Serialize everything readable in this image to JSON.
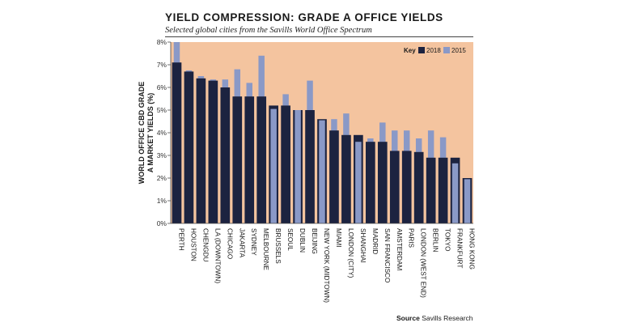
{
  "title": "YIELD COMPRESSION: GRADE A OFFICE YIELDS",
  "subtitle": "Selected global cities from the Savills World Office Spectrum",
  "source_label": "Source",
  "source_text": "Savills Research",
  "colors": {
    "background": "#f4c49f",
    "series_2018": "#1c2340",
    "series_2015": "#8a99c7"
  },
  "chart_data": {
    "type": "bar",
    "ylabel": "WORLD OFFICE CBD GRADE A MARKET YIELDS (%)",
    "legend_title": "Key",
    "legend_position": "top-right",
    "ylim": [
      0,
      8
    ],
    "yticks": [
      "0%",
      "1%",
      "2%",
      "3%",
      "4%",
      "5%",
      "6%",
      "7%",
      "8%"
    ],
    "categories": [
      "PERTH",
      "HOUSTON",
      "CHENGDU",
      "LA (DOWNTOWN)",
      "CHICAGO",
      "JAKARTA",
      "SYDNEY",
      "MELBOURNE",
      "BRUSSELS",
      "SEOUL",
      "DUBLIN",
      "BEIJING",
      "NEW YORK (MIDTOWN)",
      "MIAMI",
      "LONDON (CITY)",
      "SHANGHAI",
      "MADRID",
      "SAN FRANCISCO",
      "AMSTERDAM",
      "PARIS",
      "LONDON (WEST END)",
      "BERLIN",
      "TOKYO",
      "FRANKFURT",
      "HONG KONG"
    ],
    "series": [
      {
        "name": "2018",
        "values": [
          7.1,
          6.7,
          6.4,
          6.3,
          6.0,
          5.6,
          5.6,
          5.6,
          5.2,
          5.2,
          5.0,
          5.0,
          4.6,
          4.1,
          3.9,
          3.9,
          3.6,
          3.6,
          3.2,
          3.2,
          3.15,
          2.9,
          2.9,
          2.9,
          2.0
        ]
      },
      {
        "name": "2015",
        "values": [
          8.0,
          6.75,
          6.5,
          6.35,
          6.35,
          6.8,
          6.2,
          7.4,
          5.05,
          5.7,
          5.0,
          6.3,
          4.55,
          4.6,
          4.85,
          3.6,
          3.75,
          4.45,
          4.1,
          4.1,
          3.75,
          4.1,
          3.8,
          2.65,
          1.95
        ]
      }
    ]
  }
}
